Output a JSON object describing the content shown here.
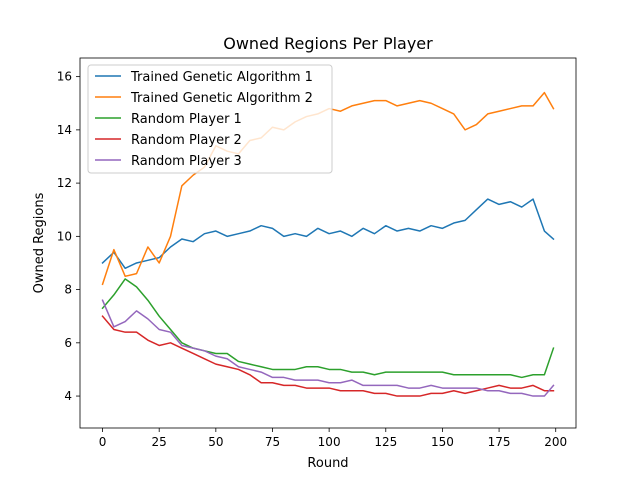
{
  "chart_data": {
    "type": "line",
    "title": "Owned Regions Per Player",
    "xlabel": "Round",
    "ylabel": "Owned Regions",
    "xlim": [
      -9.95,
      208.95
    ],
    "ylim": [
      2.8,
      16.7
    ],
    "xticks": [
      0,
      25,
      50,
      75,
      100,
      125,
      150,
      175,
      200
    ],
    "yticks": [
      4,
      6,
      8,
      10,
      12,
      14,
      16
    ],
    "grid": false,
    "legend_position": "top-left",
    "x": [
      0,
      5,
      10,
      15,
      20,
      25,
      30,
      35,
      40,
      45,
      50,
      55,
      60,
      65,
      70,
      75,
      80,
      85,
      90,
      95,
      100,
      105,
      110,
      115,
      120,
      125,
      130,
      135,
      140,
      145,
      150,
      155,
      160,
      165,
      170,
      175,
      180,
      185,
      190,
      195,
      199
    ],
    "series": [
      {
        "name": "Trained Genetic Algorithm 1",
        "color": "#1f77b4",
        "values": [
          9.0,
          9.4,
          8.8,
          9.0,
          9.1,
          9.2,
          9.6,
          9.9,
          9.8,
          10.1,
          10.2,
          10.0,
          10.1,
          10.2,
          10.4,
          10.3,
          10.0,
          10.1,
          10.0,
          10.3,
          10.1,
          10.2,
          10.0,
          10.3,
          10.1,
          10.4,
          10.2,
          10.3,
          10.2,
          10.4,
          10.3,
          10.5,
          10.6,
          11.0,
          11.4,
          11.2,
          11.3,
          11.1,
          11.4,
          10.2,
          9.9
        ]
      },
      {
        "name": "Trained Genetic Algorithm 2",
        "color": "#ff7f0e",
        "values": [
          8.2,
          9.5,
          8.5,
          8.6,
          9.6,
          9.0,
          10.0,
          11.9,
          12.3,
          12.6,
          13.4,
          13.2,
          13.1,
          13.6,
          13.7,
          14.1,
          14.0,
          14.3,
          14.5,
          14.6,
          14.8,
          14.7,
          14.9,
          15.0,
          15.1,
          15.1,
          14.9,
          15.0,
          15.1,
          15.0,
          14.8,
          14.6,
          14.0,
          14.2,
          14.6,
          14.7,
          14.8,
          14.9,
          14.9,
          15.4,
          14.8
        ]
      },
      {
        "name": "Random Player 1",
        "color": "#2ca02c",
        "values": [
          7.3,
          7.8,
          8.4,
          8.1,
          7.6,
          7.0,
          6.5,
          6.0,
          5.8,
          5.7,
          5.6,
          5.6,
          5.3,
          5.2,
          5.1,
          5.0,
          5.0,
          5.0,
          5.1,
          5.1,
          5.0,
          5.0,
          4.9,
          4.9,
          4.8,
          4.9,
          4.9,
          4.9,
          4.9,
          4.9,
          4.9,
          4.8,
          4.8,
          4.8,
          4.8,
          4.8,
          4.8,
          4.7,
          4.8,
          4.8,
          5.8
        ]
      },
      {
        "name": "Random Player 2",
        "color": "#d62728",
        "values": [
          7.0,
          6.5,
          6.4,
          6.4,
          6.1,
          5.9,
          6.0,
          5.8,
          5.6,
          5.4,
          5.2,
          5.1,
          5.0,
          4.8,
          4.5,
          4.5,
          4.4,
          4.4,
          4.3,
          4.3,
          4.3,
          4.2,
          4.2,
          4.2,
          4.1,
          4.1,
          4.0,
          4.0,
          4.0,
          4.1,
          4.1,
          4.2,
          4.1,
          4.2,
          4.3,
          4.4,
          4.3,
          4.3,
          4.4,
          4.2,
          4.2
        ]
      },
      {
        "name": "Random Player 3",
        "color": "#9467bd",
        "values": [
          7.6,
          6.6,
          6.8,
          7.2,
          6.9,
          6.5,
          6.4,
          5.9,
          5.8,
          5.7,
          5.5,
          5.4,
          5.1,
          5.0,
          4.9,
          4.7,
          4.7,
          4.6,
          4.6,
          4.6,
          4.5,
          4.5,
          4.6,
          4.4,
          4.4,
          4.4,
          4.4,
          4.3,
          4.3,
          4.4,
          4.3,
          4.3,
          4.3,
          4.3,
          4.2,
          4.2,
          4.1,
          4.1,
          4.0,
          4.0,
          4.4
        ]
      }
    ]
  }
}
